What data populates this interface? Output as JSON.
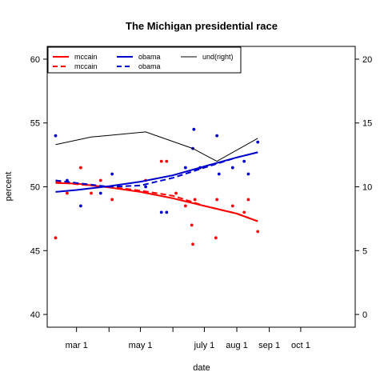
{
  "chart_data": {
    "type": "scatter",
    "title": "The Michigan presidential race",
    "xlabel": "date",
    "ylabel": "percent",
    "x_axis": {
      "kind": "date",
      "range": [
        "2008-02-02",
        "2008-11-22"
      ],
      "ticks": [
        {
          "date": "2008-03-01",
          "label": "mar 1"
        },
        {
          "date": "2008-04-01",
          "label": ""
        },
        {
          "date": "2008-05-01",
          "label": "may 1"
        },
        {
          "date": "2008-06-01",
          "label": ""
        },
        {
          "date": "2008-07-01",
          "label": "july 1"
        },
        {
          "date": "2008-08-01",
          "label": "aug 1"
        },
        {
          "date": "2008-09-01",
          "label": "sep 1"
        },
        {
          "date": "2008-10-01",
          "label": "oct 1"
        }
      ]
    },
    "y_left": {
      "range": [
        39,
        61
      ],
      "ticks": [
        40,
        45,
        50,
        55,
        60
      ]
    },
    "y_right": {
      "range": [
        -1,
        21
      ],
      "ticks": [
        0,
        5,
        10,
        15,
        20
      ]
    },
    "legend": {
      "placement": "top-left",
      "entries": [
        {
          "label": "mccain",
          "color": "#ff0000",
          "style": "solid"
        },
        {
          "label": "mccain",
          "color": "#ff0000",
          "style": "dashed"
        },
        {
          "label": "obama",
          "color": "#0000cc",
          "style": "solid"
        },
        {
          "label": "obama",
          "color": "#0000cc",
          "style": "dashed"
        },
        {
          "label": "und(right)",
          "color": "#000000",
          "style": "solid"
        }
      ]
    },
    "series": [
      {
        "name": "mccain",
        "kind": "points",
        "color": "#ff0000",
        "axis": "left",
        "points": [
          [
            "2008-02-10",
            46
          ],
          [
            "2008-02-21",
            49.5
          ],
          [
            "2008-03-05",
            51.5
          ],
          [
            "2008-03-15",
            49.5
          ],
          [
            "2008-03-24",
            50.5
          ],
          [
            "2008-04-04",
            49
          ],
          [
            "2008-05-06",
            50.5
          ],
          [
            "2008-05-21",
            52
          ],
          [
            "2008-05-26",
            52
          ],
          [
            "2008-06-04",
            49.5
          ],
          [
            "2008-06-13",
            48.5
          ],
          [
            "2008-06-19",
            47
          ],
          [
            "2008-06-20",
            45.5
          ],
          [
            "2008-06-22",
            49
          ],
          [
            "2008-07-12",
            46
          ],
          [
            "2008-07-13",
            49
          ],
          [
            "2008-07-28",
            48.5
          ],
          [
            "2008-08-08",
            48
          ],
          [
            "2008-08-12",
            49
          ],
          [
            "2008-08-21",
            46.5
          ]
        ]
      },
      {
        "name": "obama",
        "kind": "points",
        "color": "#0000cc",
        "axis": "left",
        "points": [
          [
            "2008-02-10",
            54
          ],
          [
            "2008-02-21",
            50.5
          ],
          [
            "2008-03-05",
            48.5
          ],
          [
            "2008-03-24",
            49.5
          ],
          [
            "2008-04-04",
            51
          ],
          [
            "2008-05-06",
            50
          ],
          [
            "2008-05-21",
            48
          ],
          [
            "2008-05-26",
            48
          ],
          [
            "2008-06-13",
            51.5
          ],
          [
            "2008-06-20",
            53
          ],
          [
            "2008-06-21",
            54.5
          ],
          [
            "2008-06-27",
            51.5
          ],
          [
            "2008-07-13",
            54
          ],
          [
            "2008-07-15",
            51
          ],
          [
            "2008-07-28",
            51.5
          ],
          [
            "2008-08-08",
            52
          ],
          [
            "2008-08-12",
            51
          ],
          [
            "2008-08-21",
            53.5
          ]
        ]
      },
      {
        "name": "mccain",
        "kind": "line",
        "style": "solid",
        "color": "#ff0000",
        "axis": "left",
        "points": [
          [
            "2008-02-10",
            50.3
          ],
          [
            "2008-03-01",
            50.25
          ],
          [
            "2008-04-01",
            49.95
          ],
          [
            "2008-05-01",
            49.6
          ],
          [
            "2008-06-01",
            49.1
          ],
          [
            "2008-07-01",
            48.5
          ],
          [
            "2008-08-01",
            47.9
          ],
          [
            "2008-08-21",
            47.3
          ]
        ]
      },
      {
        "name": "mccain",
        "kind": "line",
        "style": "dashed",
        "color": "#ff0000",
        "axis": "left",
        "points": [
          [
            "2008-02-10",
            50.4
          ],
          [
            "2008-03-01",
            50.2
          ],
          [
            "2008-04-01",
            50.0
          ],
          [
            "2008-05-01",
            49.7
          ],
          [
            "2008-06-01",
            49.3
          ],
          [
            "2008-06-20",
            48.8
          ],
          [
            "2008-07-01",
            48.5
          ],
          [
            "2008-08-01",
            47.9
          ],
          [
            "2008-08-21",
            47.3
          ]
        ]
      },
      {
        "name": "obama",
        "kind": "line",
        "style": "solid",
        "color": "#0000cc",
        "axis": "left",
        "points": [
          [
            "2008-02-10",
            49.6
          ],
          [
            "2008-03-01",
            49.75
          ],
          [
            "2008-04-01",
            50.05
          ],
          [
            "2008-05-01",
            50.4
          ],
          [
            "2008-06-01",
            50.9
          ],
          [
            "2008-07-01",
            51.6
          ],
          [
            "2008-08-01",
            52.3
          ],
          [
            "2008-08-21",
            52.7
          ]
        ]
      },
      {
        "name": "obama",
        "kind": "line",
        "style": "dashed",
        "color": "#0000cc",
        "axis": "left",
        "points": [
          [
            "2008-02-10",
            50.5
          ],
          [
            "2008-03-01",
            50.3
          ],
          [
            "2008-04-01",
            50.0
          ],
          [
            "2008-05-01",
            50.1
          ],
          [
            "2008-06-01",
            50.7
          ],
          [
            "2008-07-01",
            51.5
          ],
          [
            "2008-08-01",
            52.3
          ],
          [
            "2008-08-21",
            52.7
          ]
        ]
      },
      {
        "name": "und(right)",
        "kind": "line",
        "style": "solid",
        "color": "#000000",
        "axis": "right",
        "points": [
          [
            "2008-02-10",
            13.3
          ],
          [
            "2008-03-15",
            13.9
          ],
          [
            "2008-05-06",
            14.3
          ],
          [
            "2008-06-20",
            13.0
          ],
          [
            "2008-07-13",
            12.0
          ],
          [
            "2008-08-21",
            13.8
          ]
        ]
      }
    ]
  }
}
